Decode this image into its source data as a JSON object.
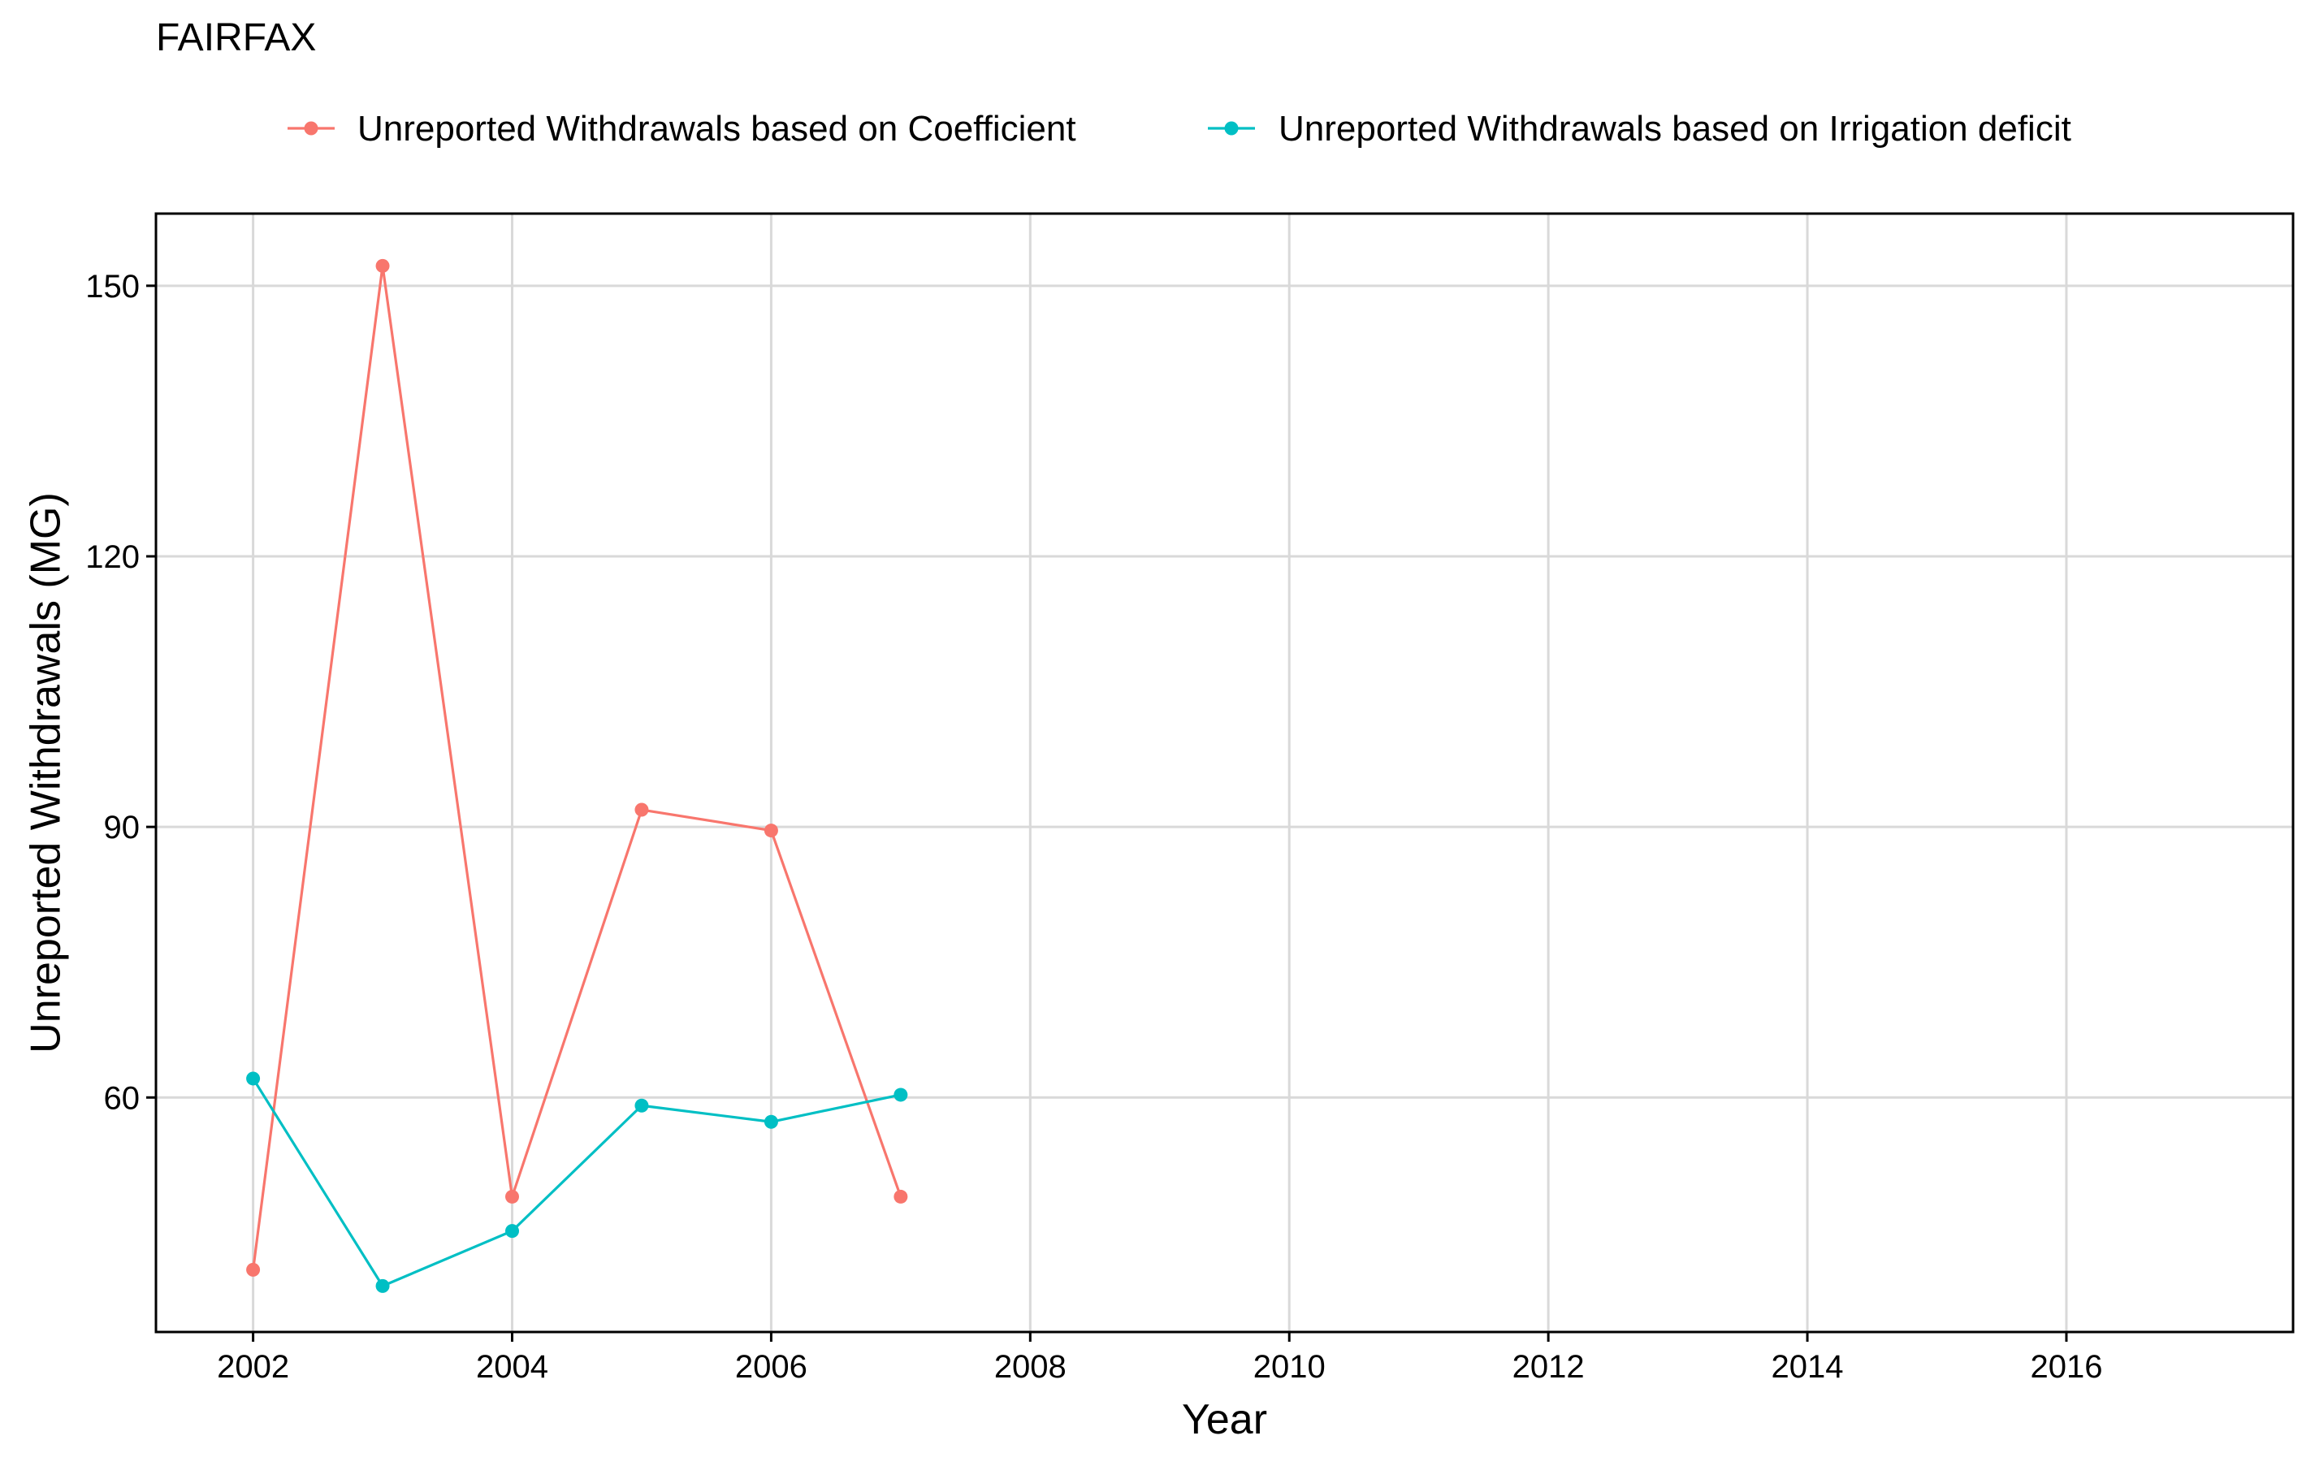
{
  "chart_data": {
    "type": "line",
    "title": "FAIRFAX",
    "xlabel": "Year",
    "ylabel": "Unreported Withdrawals (MG)",
    "xlim": [
      2001.25,
      2017.75
    ],
    "ylim": [
      34,
      158
    ],
    "x_ticks": [
      2002,
      2004,
      2006,
      2008,
      2010,
      2012,
      2014,
      2016
    ],
    "x_tick_labels": [
      "2002",
      "2004",
      "2006",
      "2008",
      "2010",
      "2012",
      "2014",
      "2016"
    ],
    "y_ticks": [
      60,
      90,
      120,
      150
    ],
    "y_tick_labels": [
      "60",
      "90",
      "120",
      "150"
    ],
    "grid": true,
    "legend_position": "top",
    "series": [
      {
        "name": "Unreported Withdrawals based on Coefficient",
        "color": "#F8766D",
        "x": [
          2002,
          2003,
          2004,
          2005,
          2006,
          2007
        ],
        "y": [
          40.9,
          152.2,
          49.0,
          91.9,
          89.6,
          49.0
        ]
      },
      {
        "name": "Unreported Withdrawals based on Irrigation deficit",
        "color": "#00BFC4",
        "x": [
          2002,
          2003,
          2004,
          2005,
          2006,
          2007
        ],
        "y": [
          62.1,
          39.1,
          45.2,
          59.1,
          57.3,
          60.3
        ]
      }
    ]
  }
}
